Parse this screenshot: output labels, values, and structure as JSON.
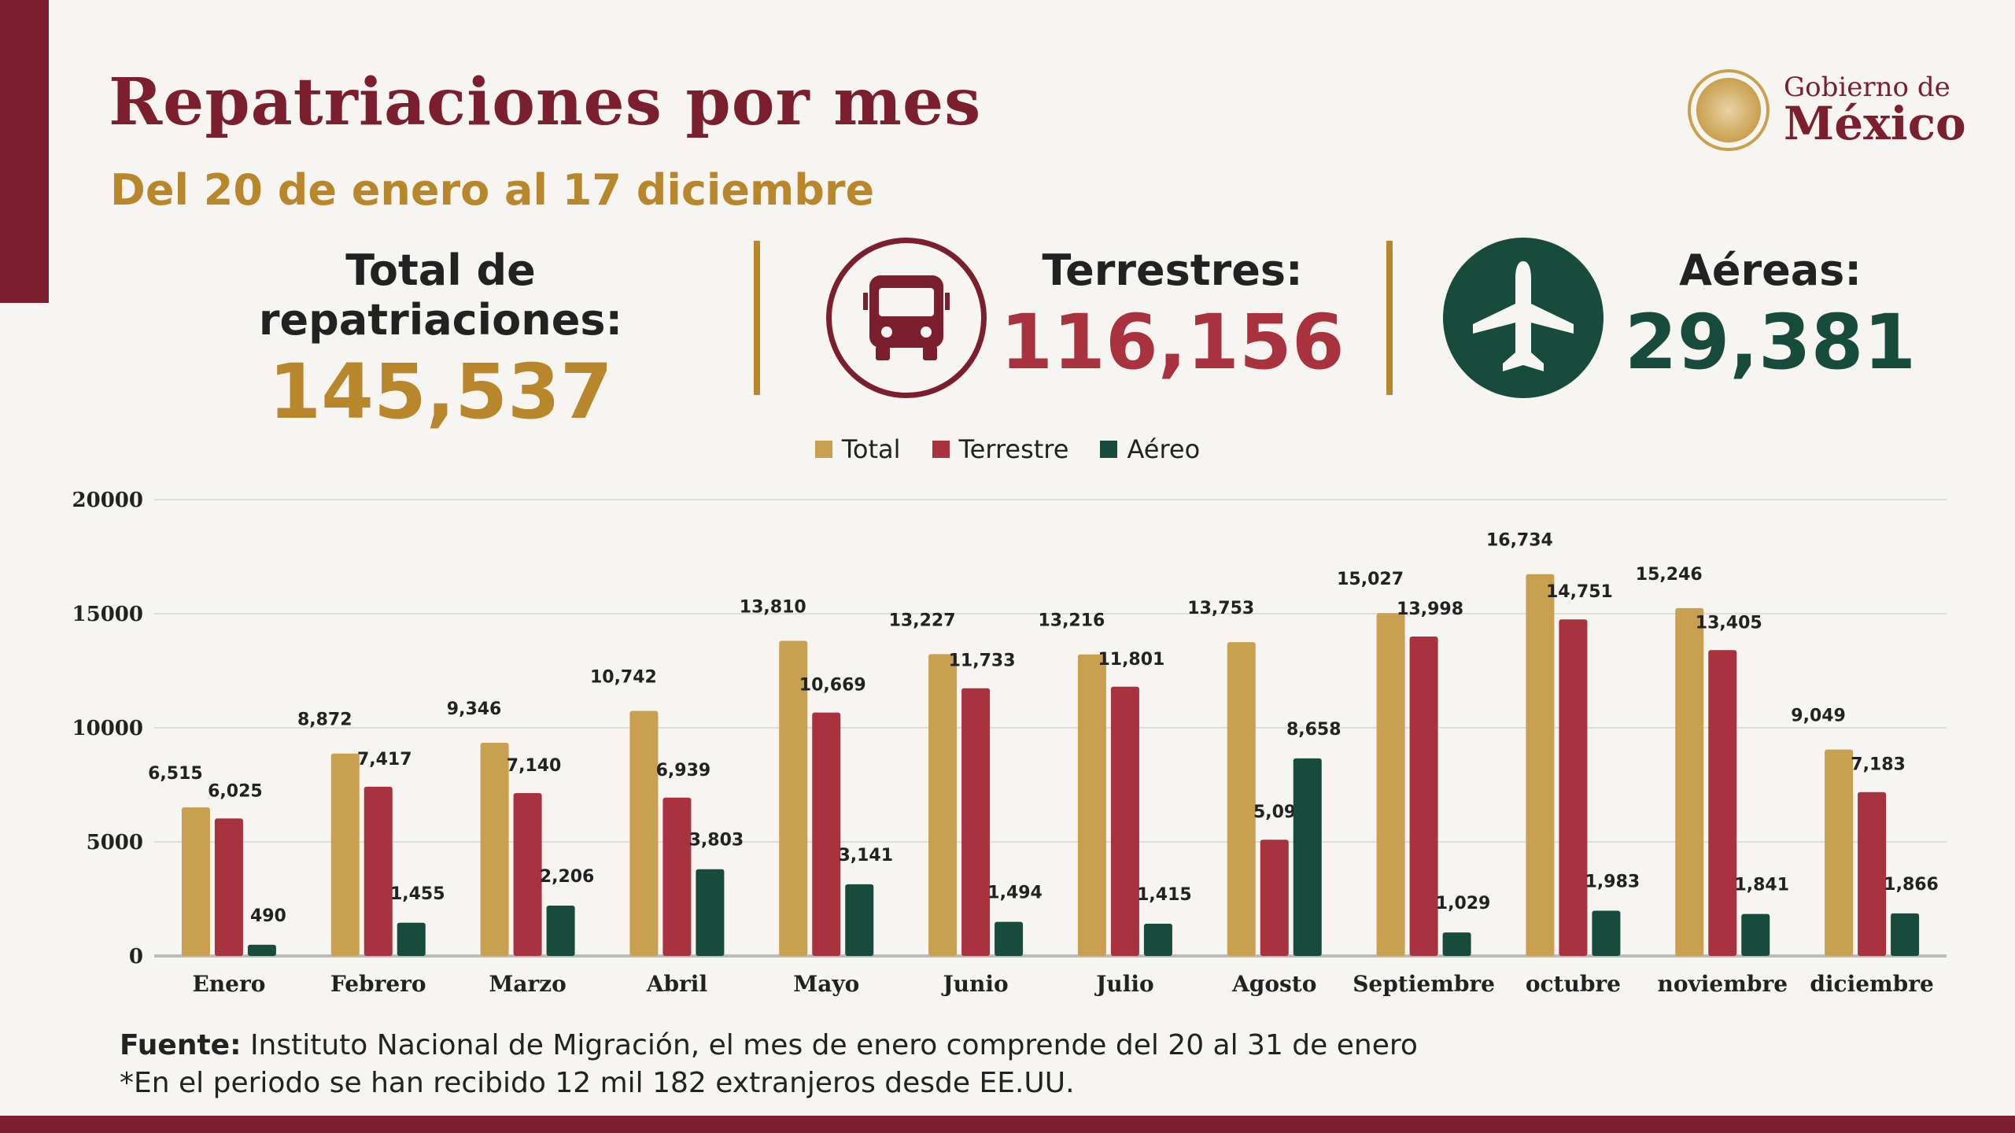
{
  "header": {
    "title": "Repatriaciones por mes",
    "subtitle": "Del 20 de enero al 17 diciembre"
  },
  "logo": {
    "line1": "Gobierno de",
    "line2": "México"
  },
  "stats": {
    "total": {
      "label": "Total de repatriaciones:",
      "value": "145,537"
    },
    "terrestres": {
      "label": "Terrestres:",
      "value": "116,156",
      "icon": "bus-icon"
    },
    "aereas": {
      "label": "Aéreas:",
      "value": "29,381",
      "icon": "airplane-icon"
    }
  },
  "colors": {
    "total": "#c9a04f",
    "terrestre": "#a8323e",
    "aereo": "#174c3c",
    "maroon": "#7b1e2e",
    "gold": "#b8862b"
  },
  "chart_data": {
    "type": "bar",
    "categories": [
      "Enero",
      "Febrero",
      "Marzo",
      "Abril",
      "Mayo",
      "Junio",
      "Julio",
      "Agosto",
      "Septiembre",
      "octubre",
      "noviembre",
      "diciembre"
    ],
    "series": [
      {
        "name": "Total",
        "values": [
          6515,
          8872,
          9346,
          10742,
          13810,
          13227,
          13216,
          13753,
          15027,
          16734,
          15246,
          9049
        ]
      },
      {
        "name": "Terrestre",
        "values": [
          6025,
          7417,
          7140,
          6939,
          10669,
          11733,
          11801,
          5095,
          13998,
          14751,
          13405,
          7183
        ]
      },
      {
        "name": "Aéreo",
        "values": [
          490,
          1455,
          2206,
          3803,
          3141,
          1494,
          1415,
          8658,
          1029,
          1983,
          1841,
          1866
        ]
      }
    ],
    "ylim": [
      0,
      20000
    ],
    "yticks": [
      "0",
      "5000",
      "10000",
      "15000",
      "20000"
    ],
    "grid": true,
    "legend": "top-center"
  },
  "footer": {
    "source_label": "Fuente:",
    "source_text": " Instituto Nacional de Migración, el mes de enero comprende del 20 al 31 de enero",
    "note": "*En el periodo se han recibido 12 mil 182 extranjeros desde EE.UU."
  }
}
